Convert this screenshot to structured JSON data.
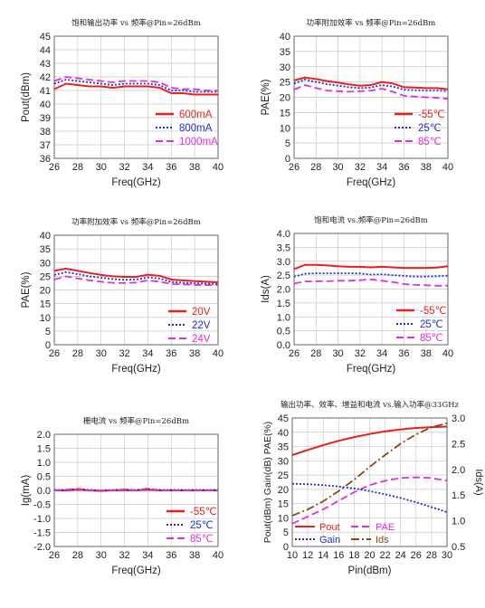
{
  "chart_data": [
    {
      "type": "line",
      "title": "饱和输出功率 vs 频率@Pin=26dBm",
      "xlabel": "Freq(GHz)",
      "ylabel": "Pout(dBm)",
      "xlim": [
        26,
        40
      ],
      "ylim": [
        36,
        45
      ],
      "xticks": [
        26,
        28,
        30,
        32,
        34,
        36,
        38,
        40
      ],
      "yticks": [
        36,
        37,
        38,
        39,
        40,
        41,
        42,
        43,
        44,
        45
      ],
      "grid": true,
      "legend_position": "bottom-right",
      "x": [
        26,
        27,
        28,
        29,
        30,
        31,
        32,
        33,
        34,
        35,
        36,
        37,
        38,
        39,
        40
      ],
      "series": [
        {
          "name": "600mA",
          "color": "#e8201e",
          "style": "solid",
          "values": [
            41.1,
            41.5,
            41.4,
            41.3,
            41.3,
            41.2,
            41.3,
            41.3,
            41.3,
            41.2,
            40.8,
            40.8,
            40.7,
            40.7,
            40.7
          ]
        },
        {
          "name": "800mA",
          "color": "#1f2fd0",
          "style": "dotted",
          "values": [
            41.5,
            41.8,
            41.7,
            41.6,
            41.5,
            41.4,
            41.5,
            41.5,
            41.5,
            41.4,
            41.0,
            41.0,
            40.9,
            40.9,
            40.9
          ]
        },
        {
          "name": "1000mA",
          "color": "#e030d8",
          "style": "dashed",
          "values": [
            41.7,
            42.0,
            41.9,
            41.8,
            41.7,
            41.6,
            41.7,
            41.7,
            41.7,
            41.6,
            41.2,
            41.1,
            41.1,
            41.0,
            41.0
          ]
        }
      ]
    },
    {
      "type": "line",
      "title": "功率附加效率 vs 频率@Pin=26dBm",
      "xlabel": "Freq(GHz)",
      "ylabel": "PAE(%)",
      "xlim": [
        26,
        40
      ],
      "ylim": [
        0,
        40
      ],
      "xticks": [
        26,
        28,
        30,
        32,
        34,
        36,
        38,
        40
      ],
      "yticks": [
        0,
        5,
        10,
        15,
        20,
        25,
        30,
        35,
        40
      ],
      "grid": true,
      "legend_position": "bottom-right",
      "x": [
        26,
        27,
        28,
        29,
        30,
        31,
        32,
        33,
        34,
        35,
        36,
        37,
        38,
        39,
        40
      ],
      "series": [
        {
          "name": "-55℃",
          "color": "#e8201e",
          "style": "solid",
          "values": [
            25.5,
            26.5,
            26.0,
            25.3,
            24.8,
            24.2,
            23.8,
            24.0,
            25.0,
            24.5,
            23.3,
            23.2,
            23.0,
            23.0,
            22.6
          ]
        },
        {
          "name": "25℃",
          "color": "#1f2fd0",
          "style": "dotted",
          "values": [
            24.5,
            25.8,
            25.0,
            24.3,
            23.8,
            23.3,
            23.0,
            23.2,
            24.0,
            23.5,
            22.5,
            22.3,
            22.2,
            22.2,
            22.0
          ]
        },
        {
          "name": "85℃",
          "color": "#e030d8",
          "style": "dashed",
          "values": [
            22.5,
            24.0,
            23.0,
            22.2,
            22.0,
            21.8,
            22.0,
            22.2,
            22.8,
            21.8,
            20.5,
            20.2,
            20.0,
            19.8,
            19.5
          ]
        }
      ]
    },
    {
      "type": "line",
      "title": "功率附加效率 vs 频率@Pin=26dBm",
      "xlabel": "Freq(GHz)",
      "ylabel": "PAE(%)",
      "xlim": [
        26,
        40
      ],
      "ylim": [
        0,
        40
      ],
      "xticks": [
        26,
        28,
        30,
        32,
        34,
        36,
        38,
        40
      ],
      "yticks": [
        0,
        5,
        10,
        15,
        20,
        25,
        30,
        35,
        40
      ],
      "grid": true,
      "legend_position": "bottom-right",
      "x": [
        26,
        27,
        28,
        29,
        30,
        31,
        32,
        33,
        34,
        35,
        36,
        37,
        38,
        39,
        40
      ],
      "series": [
        {
          "name": "20V",
          "color": "#e8201e",
          "style": "solid",
          "values": [
            27.0,
            27.8,
            27.0,
            26.2,
            25.5,
            25.0,
            24.8,
            24.8,
            25.6,
            25.2,
            23.8,
            23.5,
            23.2,
            23.0,
            22.8
          ]
        },
        {
          "name": "22V",
          "color": "#1f2fd0",
          "style": "dotted",
          "values": [
            25.5,
            26.5,
            25.8,
            25.0,
            24.5,
            24.0,
            23.7,
            23.8,
            24.6,
            24.2,
            22.9,
            22.6,
            22.4,
            22.3,
            22.2
          ]
        },
        {
          "name": "24V",
          "color": "#e030d8",
          "style": "dashed",
          "values": [
            23.8,
            25.0,
            24.2,
            23.5,
            23.0,
            22.6,
            22.5,
            22.7,
            23.5,
            23.0,
            22.2,
            22.0,
            21.9,
            21.8,
            21.8
          ]
        }
      ]
    },
    {
      "type": "line",
      "title": "饱和电流 vs.频率@Pin=26dBm",
      "xlabel": "Freq(GHz)",
      "ylabel": "Ids(A)",
      "xlim": [
        26,
        40
      ],
      "ylim": [
        0.0,
        4.0
      ],
      "xticks": [
        26,
        28,
        30,
        32,
        34,
        36,
        38,
        40
      ],
      "yticks": [
        "0.0",
        "0.5",
        "1.0",
        "1.5",
        "2.0",
        "2.5",
        "3.0",
        "3.5",
        "4.0"
      ],
      "grid": true,
      "legend_position": "bottom-right",
      "x": [
        26,
        27,
        28,
        29,
        30,
        31,
        32,
        33,
        34,
        35,
        36,
        37,
        38,
        39,
        40
      ],
      "series": [
        {
          "name": "-55℃",
          "color": "#e8201e",
          "style": "solid",
          "values": [
            2.72,
            2.87,
            2.87,
            2.85,
            2.82,
            2.8,
            2.8,
            2.78,
            2.8,
            2.78,
            2.76,
            2.76,
            2.76,
            2.77,
            2.82
          ]
        },
        {
          "name": "25℃",
          "color": "#1f2fd0",
          "style": "dotted",
          "values": [
            2.45,
            2.55,
            2.57,
            2.57,
            2.57,
            2.57,
            2.56,
            2.52,
            2.53,
            2.5,
            2.47,
            2.45,
            2.45,
            2.46,
            2.48
          ]
        },
        {
          "name": "85℃",
          "color": "#e030d8",
          "style": "dashed",
          "values": [
            2.2,
            2.27,
            2.28,
            2.28,
            2.3,
            2.3,
            2.32,
            2.35,
            2.3,
            2.25,
            2.18,
            2.15,
            2.14,
            2.12,
            2.12
          ]
        }
      ]
    },
    {
      "type": "line",
      "title": "栅电流 vs 频率@Pin=26dBm",
      "xlabel": "Freq(GHz)",
      "ylabel": "Ig(mA)",
      "xlim": [
        26,
        40
      ],
      "ylim": [
        -2.0,
        2.0
      ],
      "xticks": [
        26,
        28,
        30,
        32,
        34,
        36,
        38,
        40
      ],
      "yticks": [
        "-2.0",
        "-1.5",
        "-1.0",
        "-0.5",
        "0.0",
        "0.5",
        "1.0",
        "1.5",
        "2.0"
      ],
      "grid": true,
      "legend_position": "bottom-right",
      "x": [
        26,
        27,
        28,
        29,
        30,
        31,
        32,
        33,
        34,
        35,
        36,
        37,
        38,
        39,
        40
      ],
      "series": [
        {
          "name": "-55℃",
          "color": "#e8201e",
          "style": "solid",
          "values": [
            0.0,
            0.0,
            0.02,
            0.0,
            -0.02,
            0.0,
            0.01,
            0.0,
            0.02,
            0.0,
            0.0,
            0.0,
            0.0,
            0.0,
            0.0
          ]
        },
        {
          "name": "25℃",
          "color": "#1f2fd0",
          "style": "dotted",
          "values": [
            0.02,
            0.02,
            0.05,
            0.02,
            0.0,
            0.02,
            0.03,
            0.02,
            0.05,
            0.02,
            0.02,
            0.02,
            0.02,
            0.02,
            0.02
          ]
        },
        {
          "name": "85℃",
          "color": "#e030d8",
          "style": "dashed",
          "values": [
            0.0,
            0.03,
            0.06,
            0.0,
            0.0,
            0.0,
            0.04,
            0.0,
            0.07,
            0.0,
            0.0,
            0.0,
            0.0,
            0.0,
            0.0
          ]
        }
      ]
    },
    {
      "type": "line",
      "title": "输出功率、效率、增益和电流 vs.输入功率@33GHz",
      "xlabel": "Pin(dBm)",
      "ylabel": "Pout(dBm)  Gain(dB)  PAE(%)",
      "y2label": "Ids(A)",
      "xlim": [
        10,
        30
      ],
      "ylim": [
        0,
        45
      ],
      "y2lim": [
        0.5,
        3.0
      ],
      "xticks": [
        10,
        12,
        14,
        16,
        18,
        20,
        22,
        24,
        26,
        28,
        30
      ],
      "yticks": [
        0,
        5,
        10,
        15,
        20,
        25,
        30,
        35,
        40,
        45
      ],
      "y2ticks": [
        "0.5",
        "1.0",
        "1.5",
        "2.0",
        "2.5",
        "3.0"
      ],
      "grid": true,
      "legend_position": "bottom",
      "x": [
        10,
        12,
        14,
        16,
        18,
        20,
        22,
        24,
        26,
        28,
        30
      ],
      "series": [
        {
          "name": "Pout",
          "axis": "left",
          "color": "#e8201e",
          "style": "solid",
          "values": [
            32.0,
            33.8,
            35.5,
            37.0,
            38.3,
            39.4,
            40.3,
            41.0,
            41.5,
            41.8,
            42.0
          ]
        },
        {
          "name": "PAE",
          "axis": "left",
          "color": "#e030d8",
          "style": "dashed",
          "values": [
            8.0,
            10.5,
            13.0,
            16.0,
            19.0,
            21.5,
            23.0,
            24.0,
            24.2,
            24.0,
            23.0
          ]
        },
        {
          "name": "Gain",
          "axis": "left",
          "color": "#1f2fd0",
          "style": "dotted",
          "values": [
            22.0,
            21.8,
            21.5,
            21.0,
            20.3,
            19.4,
            18.3,
            17.0,
            15.5,
            13.8,
            12.0
          ]
        },
        {
          "name": "Ids",
          "axis": "right",
          "color": "#8b4513",
          "style": "dashdot",
          "values": [
            1.1,
            1.22,
            1.38,
            1.58,
            1.8,
            2.05,
            2.28,
            2.5,
            2.68,
            2.82,
            2.9
          ]
        }
      ]
    }
  ]
}
